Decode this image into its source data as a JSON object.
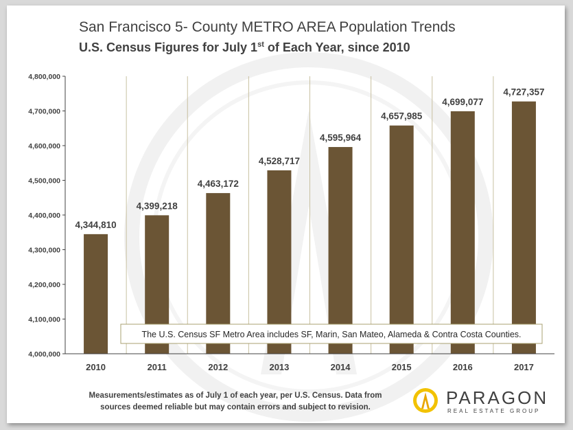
{
  "title": "San Francisco 5- County METRO AREA Population Trends",
  "subtitle": {
    "before": "U.S. Census Figures for July 1",
    "sup": "st",
    "after": " of Each Year, since 2010"
  },
  "note": "The U.S. Census SF Metro Area includes SF, Marin, San Mateo, Alameda & Contra Costa Counties.",
  "footer": [
    "Measurements/estimates as of July 1 of each year, per U.S. Census.  Data from",
    "sources deemed reliable but may contain errors and subject to revision."
  ],
  "logo": {
    "word": "PARAGON",
    "sub": "REAL ESTATE GROUP"
  },
  "colors": {
    "bar": "#6b5535",
    "text": "#404040",
    "gridline": "#c8c0a0"
  },
  "chart_data": {
    "type": "bar",
    "categories": [
      "2010",
      "2011",
      "2012",
      "2013",
      "2014",
      "2015",
      "2016",
      "2017"
    ],
    "values": [
      4344810,
      4399218,
      4463172,
      4528717,
      4595964,
      4657985,
      4699077,
      4727357
    ],
    "value_labels": [
      "4,344,810",
      "4,399,218",
      "4,463,172",
      "4,528,717",
      "4,595,964",
      "4,657,985",
      "4,699,077",
      "4,727,357"
    ],
    "yticks": [
      "4,000,000",
      "4,100,000",
      "4,200,000",
      "4,300,000",
      "4,400,000",
      "4,500,000",
      "4,600,000",
      "4,700,000",
      "4,800,000"
    ],
    "ylim": [
      4000000,
      4800000
    ],
    "xlabel": "",
    "ylabel": ""
  }
}
